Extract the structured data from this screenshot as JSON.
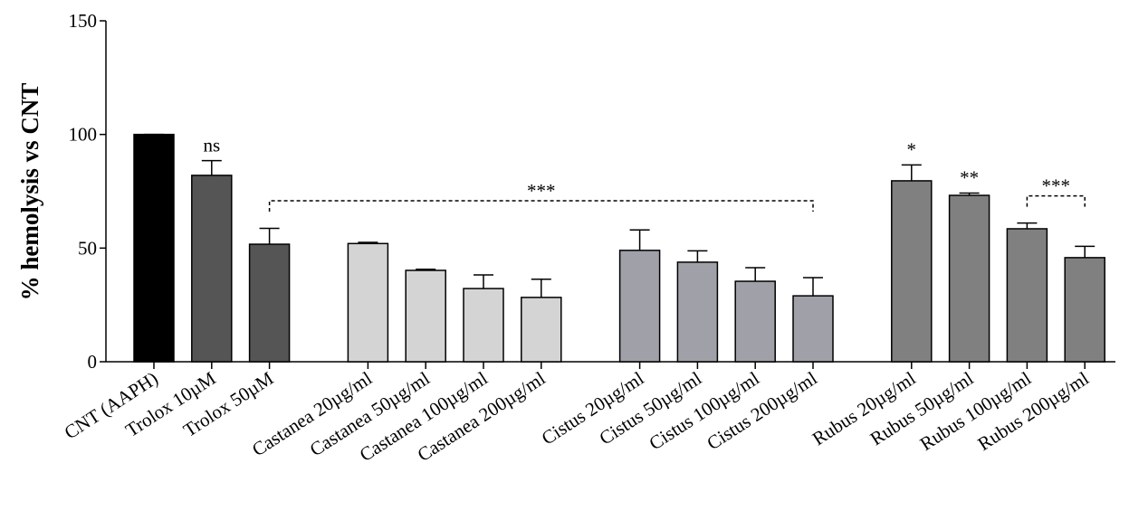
{
  "chart_data": {
    "type": "bar",
    "y_label": "% hemolysis vs CNT",
    "categories": [
      "CNT (AAPH)",
      "Trolox 10µM",
      "Trolox 50µM",
      "Castanea 20µg/ml",
      "Castanea 50µg/ml",
      "Castanea 100µg/ml",
      "Castanea 200µg/ml",
      "Cistus 20µg/ml",
      "Cistus 50µg/ml",
      "Cistus 100µg/ml",
      "Cistus 200µg/ml",
      "Rubus 20µg/ml",
      "Rubus 50µg/ml",
      "Rubus 100µg/ml",
      "Rubus 200µg/ml"
    ],
    "values": [
      100,
      82,
      51.7,
      52,
      40.2,
      32.2,
      28.3,
      49,
      43.8,
      35.4,
      29,
      79.6,
      73.2,
      58.5,
      45.8
    ],
    "errors": [
      0,
      6.5,
      7,
      0.5,
      0.5,
      6,
      8,
      9,
      5,
      6,
      8,
      7,
      1,
      2.5,
      5
    ],
    "colors": [
      "#000000",
      "#555555",
      "#555555",
      "#d4d4d4",
      "#d4d4d4",
      "#d4d4d4",
      "#d4d4d4",
      "#a0a0a8",
      "#a0a0a8",
      "#a0a0a8",
      "#a0a0a8",
      "#808080",
      "#808080",
      "#808080",
      "#808080"
    ],
    "ylim": [
      0,
      150
    ],
    "yticks": [
      0,
      50,
      100,
      150
    ],
    "annotations": [
      {
        "text": "ns",
        "from": 1,
        "to": 1
      },
      {
        "text": "***",
        "from": 2,
        "to": 10
      },
      {
        "text": "*",
        "from": 11,
        "to": 11
      },
      {
        "text": "**",
        "from": 12,
        "to": 12
      },
      {
        "text": "***",
        "from": 13,
        "to": 14
      }
    ]
  }
}
